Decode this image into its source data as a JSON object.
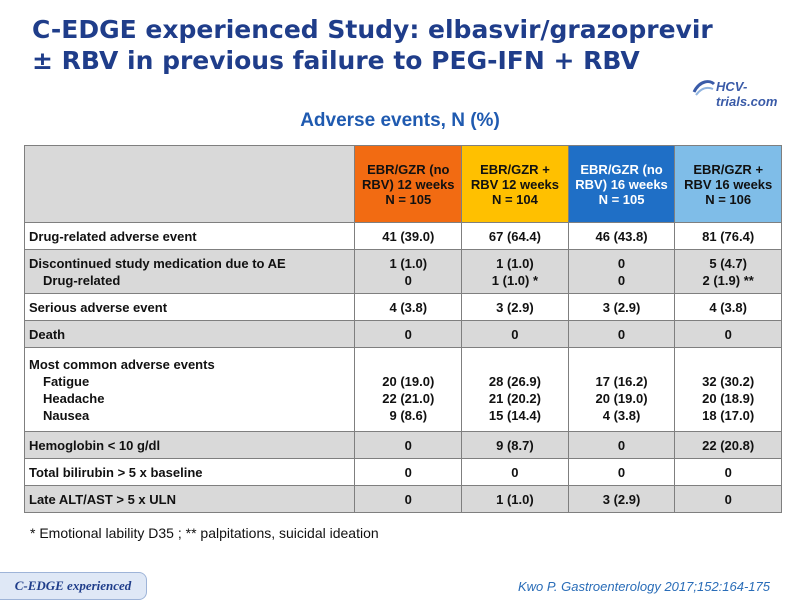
{
  "slide": {
    "title_line1": "C-EDGE experienced Study: elbasvir/grazoprevir",
    "title_line2": "± RBV in previous failure to PEG-IFN + RBV",
    "logo_text": "HCV-trials.com",
    "subtitle": "Adverse events, N (%)",
    "footnote": "* Emotional lability D35 ; ** palpitations, suicidal ideation",
    "badge": "C-EDGE experienced",
    "reference": "Kwo P. Gastroenterology 2017;152:164-175"
  },
  "table": {
    "headers": [
      [
        "EBR/GZR",
        "(no RBV)",
        "12 weeks",
        "N = 105"
      ],
      [
        "EBR/GZR",
        "+ RBV",
        "12 weeks",
        "N = 104"
      ],
      [
        "EBR/GZR",
        "(no RBV)",
        "16 weeks",
        "N = 105"
      ],
      [
        "EBR/GZR",
        "+ RBV",
        "16 weeks",
        "N = 106"
      ]
    ],
    "header_colors": [
      "#f26b12",
      "#ffc000",
      "#1f6fc6",
      "#7fbde8"
    ],
    "rows": [
      {
        "labels": [
          "Drug-related adverse event"
        ],
        "values": [
          [
            "41 (39.0)"
          ],
          [
            "67 (64.4)"
          ],
          [
            "46 (43.8)"
          ],
          [
            "81 (76.4)"
          ]
        ]
      },
      {
        "labels": [
          "Discontinued study medication due to AE",
          "Drug-related"
        ],
        "values": [
          [
            "1 (1.0)",
            "0"
          ],
          [
            "1 (1.0)",
            "1 (1.0) *"
          ],
          [
            "0",
            "0"
          ],
          [
            "5 (4.7)",
            "2 (1.9) **"
          ]
        ]
      },
      {
        "labels": [
          "Serious adverse event"
        ],
        "values": [
          [
            "4 (3.8)"
          ],
          [
            "3 (2.9)"
          ],
          [
            "3 (2.9)"
          ],
          [
            "4 (3.8)"
          ]
        ]
      },
      {
        "labels": [
          "Death"
        ],
        "values": [
          [
            "0"
          ],
          [
            "0"
          ],
          [
            "0"
          ],
          [
            "0"
          ]
        ]
      },
      {
        "labels": [
          "Most common adverse events",
          "Fatigue",
          "Headache",
          "Nausea"
        ],
        "values": [
          [
            "",
            "20 (19.0)",
            "22 (21.0)",
            "9 (8.6)"
          ],
          [
            "",
            "28 (26.9)",
            "21 (20.2)",
            "15 (14.4)"
          ],
          [
            "",
            "17 (16.2)",
            "20 (19.0)",
            "4 (3.8)"
          ],
          [
            "",
            "32 (30.2)",
            "20 (18.9)",
            "18 (17.0)"
          ]
        ]
      },
      {
        "labels": [
          "Hemoglobin < 10 g/dl"
        ],
        "values": [
          [
            "0"
          ],
          [
            "9 (8.7)"
          ],
          [
            "0"
          ],
          [
            "22 (20.8)"
          ]
        ]
      },
      {
        "labels": [
          "Total bilirubin > 5 x baseline"
        ],
        "values": [
          [
            "0"
          ],
          [
            "0"
          ],
          [
            "0"
          ],
          [
            "0"
          ]
        ]
      },
      {
        "labels": [
          "Late ALT/AST > 5 x ULN"
        ],
        "values": [
          [
            "0"
          ],
          [
            "1 (1.0)"
          ],
          [
            "3 (2.9)"
          ],
          [
            "0"
          ]
        ]
      }
    ]
  }
}
